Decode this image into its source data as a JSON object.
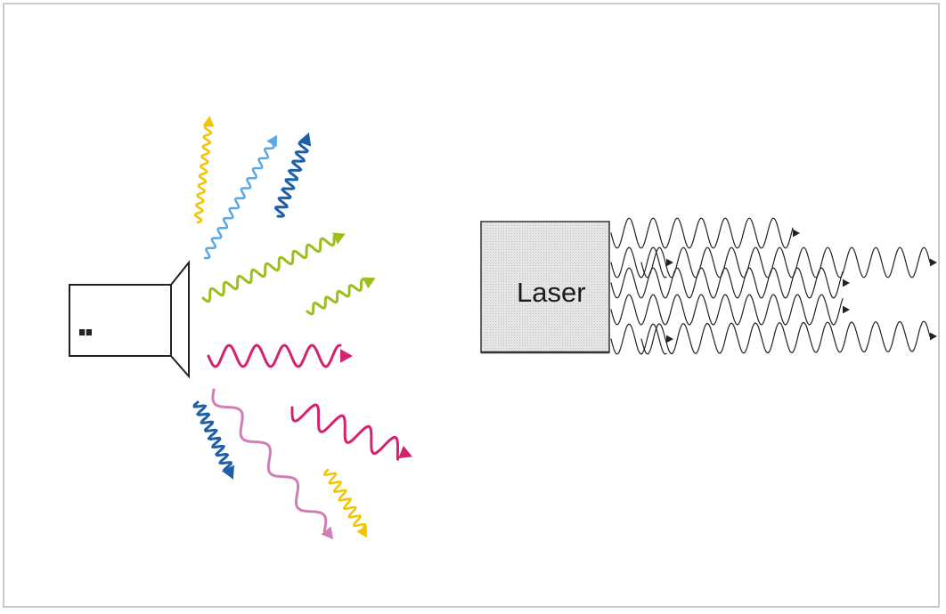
{
  "diagram": {
    "laser_label": "Laser",
    "colors": {
      "yellow": "#f2c500",
      "light_blue": "#5aa9e6",
      "dark_blue": "#1d5fa8",
      "green": "#9cbf1e",
      "magenta": "#d5216e",
      "pink": "#cf7fb4",
      "black": "#222222",
      "laser_fill": "#e4e4e4",
      "frame": "#c9c9c9"
    }
  }
}
